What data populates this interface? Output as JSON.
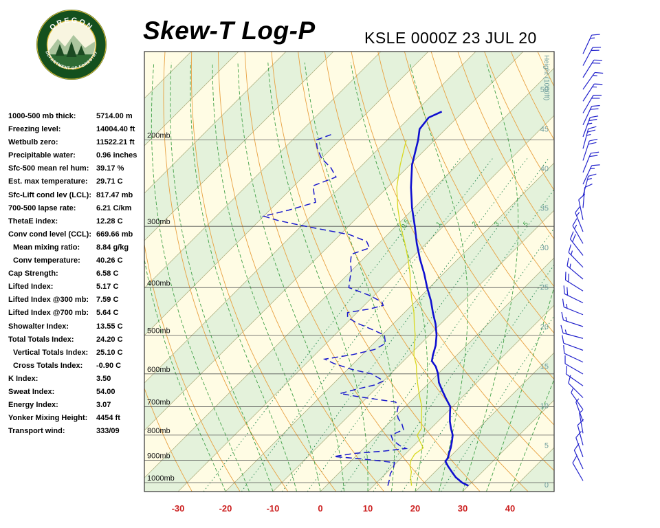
{
  "header": {
    "title": "Skew-T Log-P",
    "station_line": "KSLE 0000Z 23 JUL 20",
    "logo": {
      "line1": "OREGON",
      "line2": "DEPARTMENT OF FORESTRY"
    }
  },
  "indices": [
    {
      "label": "1000-500 mb thick:",
      "value": "5714.00 m",
      "indent": false
    },
    {
      "label": "Freezing level:",
      "value": "14004.40 ft",
      "indent": false
    },
    {
      "label": "Wetbulb zero:",
      "value": "11522.21 ft",
      "indent": false
    },
    {
      "label": "Precipitable water:",
      "value": "0.96 inches",
      "indent": false
    },
    {
      "label": "Sfc-500 mean rel hum:",
      "value": "39.17 %",
      "indent": false
    },
    {
      "label": "Est. max temperature:",
      "value": "29.71 C",
      "indent": false
    },
    {
      "label": "Sfc-Lift cond lev (LCL):",
      "value": "817.47 mb",
      "indent": false
    },
    {
      "label": "700-500 lapse rate:",
      "value": "6.21 C/km",
      "indent": false
    },
    {
      "label": "ThetaE index:",
      "value": "12.28 C",
      "indent": false
    },
    {
      "label": "Conv cond level (CCL):",
      "value": "669.66 mb",
      "indent": false
    },
    {
      "label": "Mean mixing ratio:",
      "value": "8.84 g/kg",
      "indent": true
    },
    {
      "label": "Conv temperature:",
      "value": "40.26 C",
      "indent": true
    },
    {
      "label": "Cap Strength:",
      "value": "6.58 C",
      "indent": false
    },
    {
      "label": "Lifted Index:",
      "value": "5.17 C",
      "indent": false
    },
    {
      "label": "Lifted Index @300 mb:",
      "value": "7.59 C",
      "indent": false
    },
    {
      "label": "Lifted Index @700 mb:",
      "value": "5.64 C",
      "indent": false
    },
    {
      "label": "Showalter Index:",
      "value": "13.55 C",
      "indent": false
    },
    {
      "label": "Total Totals Index:",
      "value": "24.20 C",
      "indent": false
    },
    {
      "label": "Vertical Totals Index:",
      "value": "25.10 C",
      "indent": true
    },
    {
      "label": "Cross Totals Index:",
      "value": "-0.90 C",
      "indent": true
    },
    {
      "label": "K Index:",
      "value": "3.50",
      "indent": false
    },
    {
      "label": "Sweat Index:",
      "value": "54.00",
      "indent": false
    },
    {
      "label": "Energy Index:",
      "value": "3.07",
      "indent": false
    },
    {
      "label": "Yonker Mixing Height:",
      "value": "4454 ft",
      "indent": false
    },
    {
      "label": "Transport wind:",
      "value": "333/09",
      "indent": false
    }
  ],
  "chart_data": {
    "type": "skewt-log-p",
    "pressure_levels": [
      200,
      300,
      400,
      500,
      600,
      700,
      800,
      900,
      1000
    ],
    "pressure_label_suffix": "mb",
    "pressure_range": [
      132,
      1043
    ],
    "temp_ticks": [
      -30,
      -20,
      -10,
      0,
      10,
      20,
      30,
      40
    ],
    "surface_temp_range": [
      -37,
      49
    ],
    "height_ticks": [
      0,
      5,
      10,
      15,
      20,
      25,
      30,
      35,
      40,
      45,
      50
    ],
    "height_axis_label": "Height (1000ft)",
    "mixing_ratio_lines": [
      0.5,
      1,
      2,
      3,
      5,
      8,
      12,
      20
    ],
    "mixing_ratio_labeled": [
      0.5,
      1,
      2,
      3,
      5
    ],
    "temperature_profile": [
      [
        1015,
        30.0
      ],
      [
        1000,
        28.0
      ],
      [
        975,
        25.5
      ],
      [
        950,
        23.5
      ],
      [
        925,
        21.5
      ],
      [
        905,
        20.0
      ],
      [
        890,
        19.8
      ],
      [
        870,
        19.0
      ],
      [
        850,
        18.3
      ],
      [
        825,
        17.2
      ],
      [
        800,
        16.0
      ],
      [
        775,
        14.2
      ],
      [
        750,
        12.5
      ],
      [
        725,
        11.0
      ],
      [
        700,
        9.5
      ],
      [
        675,
        7.0
      ],
      [
        650,
        4.5
      ],
      [
        625,
        2.0
      ],
      [
        600,
        0.0
      ],
      [
        580,
        -2.0
      ],
      [
        565,
        -4.0
      ],
      [
        550,
        -5.0
      ],
      [
        525,
        -6.5
      ],
      [
        500,
        -8.5
      ],
      [
        475,
        -11.0
      ],
      [
        450,
        -14.0
      ],
      [
        425,
        -17.0
      ],
      [
        400,
        -20.5
      ],
      [
        375,
        -24.0
      ],
      [
        350,
        -28.0
      ],
      [
        325,
        -32.0
      ],
      [
        300,
        -36.0
      ],
      [
        275,
        -40.5
      ],
      [
        250,
        -45.0
      ],
      [
        225,
        -49.5
      ],
      [
        200,
        -53.5
      ],
      [
        190,
        -55.5
      ],
      [
        180,
        -56.0
      ],
      [
        175,
        -54.5
      ]
    ],
    "dewpoint_profile": [
      [
        1015,
        13
      ],
      [
        1000,
        12.5
      ],
      [
        985,
        12
      ],
      [
        960,
        11
      ],
      [
        935,
        10.5
      ],
      [
        910,
        9.5
      ],
      [
        895,
        2
      ],
      [
        885,
        -4.5
      ],
      [
        872,
        -1
      ],
      [
        862,
        5
      ],
      [
        852,
        9
      ],
      [
        840,
        7
      ],
      [
        820,
        4.5
      ],
      [
        800,
        3
      ],
      [
        780,
        4.5
      ],
      [
        760,
        3
      ],
      [
        740,
        1
      ],
      [
        720,
        -0.5
      ],
      [
        700,
        -1.5
      ],
      [
        685,
        -3
      ],
      [
        668,
        -12
      ],
      [
        658,
        -16.5
      ],
      [
        645,
        -14
      ],
      [
        632,
        -11
      ],
      [
        620,
        -10
      ],
      [
        610,
        -12
      ],
      [
        600,
        -14
      ],
      [
        588,
        -19
      ],
      [
        572,
        -24
      ],
      [
        560,
        -27
      ],
      [
        548,
        -22
      ],
      [
        535,
        -18.5
      ],
      [
        520,
        -17.5
      ],
      [
        510,
        -18.5
      ],
      [
        500,
        -19.5
      ],
      [
        488,
        -23
      ],
      [
        472,
        -28
      ],
      [
        460,
        -31
      ],
      [
        450,
        -32
      ],
      [
        442,
        -28
      ],
      [
        435,
        -26
      ],
      [
        428,
        -27
      ],
      [
        415,
        -31
      ],
      [
        400,
        -37
      ],
      [
        385,
        -38.5
      ],
      [
        370,
        -40
      ],
      [
        355,
        -42
      ],
      [
        342,
        -43.5
      ],
      [
        332,
        -41
      ],
      [
        322,
        -43
      ],
      [
        312,
        -48
      ],
      [
        300,
        -59
      ],
      [
        292,
        -66
      ],
      [
        286,
        -70
      ],
      [
        278,
        -66
      ],
      [
        268,
        -62
      ],
      [
        258,
        -64
      ],
      [
        248,
        -66
      ],
      [
        238,
        -63
      ],
      [
        228,
        -66
      ],
      [
        218,
        -70
      ],
      [
        208,
        -73
      ],
      [
        200,
        -75
      ],
      [
        195,
        -73
      ]
    ],
    "wetbulb_profile": [
      [
        1015,
        18
      ],
      [
        975,
        16
      ],
      [
        950,
        15
      ],
      [
        925,
        13.5
      ],
      [
        900,
        12.5
      ],
      [
        875,
        12
      ],
      [
        850,
        12.5
      ],
      [
        825,
        10.5
      ],
      [
        800,
        8.5
      ],
      [
        775,
        8
      ],
      [
        750,
        6.5
      ],
      [
        725,
        5
      ],
      [
        700,
        3.5
      ],
      [
        675,
        1.5
      ],
      [
        650,
        -0.5
      ],
      [
        625,
        -2.5
      ],
      [
        600,
        -4.5
      ],
      [
        575,
        -6.5
      ],
      [
        550,
        -9
      ],
      [
        525,
        -11
      ],
      [
        500,
        -13
      ],
      [
        475,
        -15.5
      ],
      [
        450,
        -18
      ],
      [
        425,
        -21
      ],
      [
        400,
        -24
      ],
      [
        375,
        -27
      ],
      [
        350,
        -30.5
      ],
      [
        325,
        -34.5
      ],
      [
        300,
        -39
      ],
      [
        275,
        -43.5
      ],
      [
        250,
        -48
      ],
      [
        225,
        -52
      ],
      [
        200,
        -56
      ]
    ],
    "wind_barbs": [
      [
        0.5,
        330,
        8
      ],
      [
        2,
        335,
        9
      ],
      [
        3.5,
        340,
        10
      ],
      [
        5,
        345,
        9
      ],
      [
        6.5,
        350,
        7
      ],
      [
        8,
        340,
        5
      ],
      [
        9.5,
        325,
        6
      ],
      [
        11,
        315,
        8
      ],
      [
        12.5,
        305,
        10
      ],
      [
        14,
        300,
        12
      ],
      [
        15.5,
        295,
        10
      ],
      [
        17,
        290,
        12
      ],
      [
        18.5,
        285,
        14
      ],
      [
        20,
        288,
        15
      ],
      [
        21.5,
        292,
        17
      ],
      [
        23,
        296,
        19
      ],
      [
        24.5,
        302,
        18
      ],
      [
        26,
        310,
        15
      ],
      [
        27.5,
        316,
        17
      ],
      [
        29,
        322,
        19
      ],
      [
        30.5,
        330,
        16
      ],
      [
        32,
        338,
        13
      ],
      [
        33.5,
        348,
        10
      ],
      [
        35,
        5,
        12
      ],
      [
        36.5,
        15,
        14
      ],
      [
        38,
        25,
        16
      ],
      [
        39.5,
        22,
        18
      ],
      [
        41,
        18,
        21
      ],
      [
        42.5,
        15,
        23
      ],
      [
        44,
        20,
        24
      ],
      [
        45.5,
        25,
        21
      ],
      [
        47,
        30,
        18
      ],
      [
        48.5,
        33,
        16
      ],
      [
        50,
        35,
        15
      ],
      [
        51.5,
        32,
        18
      ],
      [
        53,
        28,
        20
      ],
      [
        54.5,
        25,
        17
      ]
    ],
    "colors": {
      "band_cream": "#FFFCE4",
      "band_green": "#E4F2DB",
      "isotherm": "#A8A878",
      "dry_adiabat": "#E8A040",
      "moist_adiabat": "#3FA045",
      "mixing_ratio": "#2E8B57",
      "mixing_ratio_label": "#2E9B3C",
      "pressure_line": "#555555",
      "pressure_label": "#111111",
      "temperature": "#0F0FD0",
      "dewpoint": "#1818CC",
      "wetbulb": "#D8D820",
      "temp_label": "#CC2020",
      "height_label": "#6B9B9B",
      "wind_barb": "#2222CC"
    }
  }
}
